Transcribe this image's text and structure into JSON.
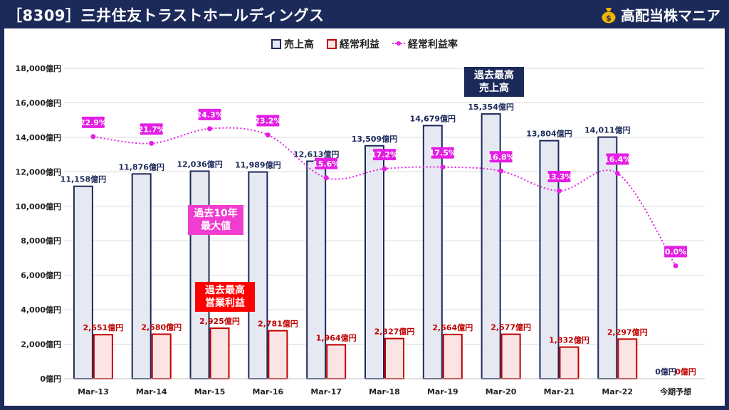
{
  "header": {
    "title": "［8309］三井住友トラストホールディングス",
    "brand": "高配当株マニア"
  },
  "legend": {
    "revenue": "売上高",
    "profit": "経常利益",
    "margin": "経常利益率"
  },
  "callouts": {
    "revenue_high": [
      "過去最高",
      "売上高"
    ],
    "margin_high": [
      "過去10年",
      "最大値"
    ],
    "profit_high": [
      "過去最高",
      "営業利益"
    ]
  },
  "colors": {
    "header_bg": "#1c2a5a",
    "revenue_border": "#1c2a5a",
    "revenue_fill": "#e6e9f2",
    "profit_border": "#c00000",
    "profit_fill": "#fbe4e4",
    "margin_line": "#e51ee5",
    "callout_navy": "#1c2a5a",
    "callout_pink": "#f03cd0",
    "callout_red": "#ff0000",
    "brand_icon": "#f0b400"
  },
  "icons": {
    "brand": "money-bag-icon"
  },
  "chart_data": {
    "type": "bar",
    "categories": [
      "Mar-13",
      "Mar-14",
      "Mar-15",
      "Mar-16",
      "Mar-17",
      "Mar-18",
      "Mar-19",
      "Mar-20",
      "Mar-21",
      "Mar-22",
      "今期予想"
    ],
    "ylim": [
      0,
      18000
    ],
    "yticks": [
      0,
      2000,
      4000,
      6000,
      8000,
      10000,
      12000,
      14000,
      16000,
      18000
    ],
    "ytick_labels": [
      "0億円",
      "2,000億円",
      "4,000億円",
      "6,000億円",
      "8,000億円",
      "10,000億円",
      "12,000億円",
      "14,000億円",
      "16,000億円",
      "18,000億円"
    ],
    "grid": true,
    "legend_position": "top-center",
    "series": [
      {
        "name": "売上高",
        "kind": "bar",
        "values": [
          11158,
          11876,
          12036,
          11989,
          12613,
          13509,
          14679,
          15354,
          13804,
          14011,
          0
        ],
        "labels": [
          "11,158億円",
          "11,876億円",
          "12,036億円",
          "11,989億円",
          "12,613億円",
          "13,509億円",
          "14,679億円",
          "15,354億円",
          "13,804億円",
          "14,011億円",
          "0億円"
        ]
      },
      {
        "name": "経常利益",
        "kind": "bar",
        "values": [
          2551,
          2580,
          2925,
          2781,
          1964,
          2327,
          2564,
          2577,
          1832,
          2297,
          0
        ],
        "labels": [
          "2,551億円",
          "2,580億円",
          "2,925億円",
          "2,781億円",
          "1,964億円",
          "2,327億円",
          "2,564億円",
          "2,577億円",
          "1,832億円",
          "2,297億円",
          "0億円"
        ]
      },
      {
        "name": "経常利益率",
        "kind": "line",
        "values": [
          22.9,
          21.7,
          24.3,
          23.2,
          15.6,
          17.2,
          17.5,
          16.8,
          13.3,
          16.4,
          0.0
        ],
        "labels": [
          "22.9%",
          "21.7%",
          "24.3%",
          "23.2%",
          "15.6%",
          "17.2%",
          "17.5%",
          "16.8%",
          "13.3%",
          "16.4%",
          "0.0%"
        ],
        "secondary_ylim": [
          -20,
          35
        ]
      }
    ]
  }
}
